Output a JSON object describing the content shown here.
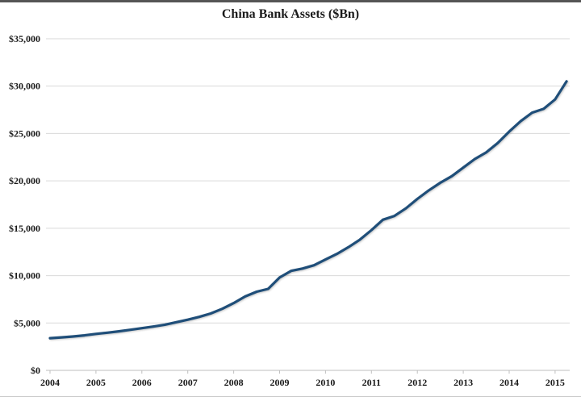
{
  "colors": {
    "line": "#1F4E79",
    "gridline": "#D9D9D9",
    "axis": "#BFBFBF",
    "tick": "#BFBFBF",
    "text": "#1A1A1A",
    "top_border": "#555555",
    "bottom_border": "#C9C9C9",
    "background": "#FFFFFF"
  },
  "chart_data": {
    "type": "line",
    "title": "China Bank Assets ($Bn)",
    "xlabel": "",
    "ylabel": "",
    "x_unit": "year (quarterly)",
    "y_unit": "$Bn",
    "ylim": [
      0,
      35000
    ],
    "xlim": [
      2003.9,
      2015.32
    ],
    "grid": "horizontal-only",
    "legend": "none",
    "xtick_labels": [
      "2004",
      "2005",
      "2006",
      "2007",
      "2008",
      "2009",
      "2010",
      "2011",
      "2012",
      "2013",
      "2014",
      "2015"
    ],
    "xtick_values": [
      2004,
      2005,
      2006,
      2007,
      2008,
      2009,
      2010,
      2011,
      2012,
      2013,
      2014,
      2015
    ],
    "ytick_labels": [
      "$0",
      "$5,000",
      "$10,000",
      "$15,000",
      "$20,000",
      "$25,000",
      "$30,000",
      "$35,000"
    ],
    "ytick_values": [
      0,
      5000,
      10000,
      15000,
      20000,
      25000,
      30000,
      35000
    ],
    "series": [
      {
        "name": "China Bank Assets ($Bn)",
        "x": [
          2004.0,
          2004.25,
          2004.5,
          2004.75,
          2005.0,
          2005.25,
          2005.5,
          2005.75,
          2006.0,
          2006.25,
          2006.5,
          2006.75,
          2007.0,
          2007.25,
          2007.5,
          2007.75,
          2008.0,
          2008.25,
          2008.5,
          2008.75,
          2009.0,
          2009.25,
          2009.5,
          2009.75,
          2010.0,
          2010.25,
          2010.5,
          2010.75,
          2011.0,
          2011.25,
          2011.5,
          2011.75,
          2012.0,
          2012.25,
          2012.5,
          2012.75,
          2013.0,
          2013.25,
          2013.5,
          2013.75,
          2014.0,
          2014.25,
          2014.5,
          2014.75,
          2015.0,
          2015.25
        ],
        "values": [
          3400,
          3480,
          3580,
          3700,
          3850,
          3980,
          4120,
          4280,
          4450,
          4620,
          4820,
          5080,
          5350,
          5650,
          6000,
          6500,
          7100,
          7800,
          8300,
          8600,
          9800,
          10500,
          10750,
          11100,
          11700,
          12300,
          13000,
          13800,
          14800,
          15900,
          16300,
          17100,
          18100,
          19000,
          19800,
          20500,
          21400,
          22300,
          23000,
          24000,
          25200,
          26300,
          27200,
          27600,
          28600,
          30500
        ]
      }
    ]
  }
}
